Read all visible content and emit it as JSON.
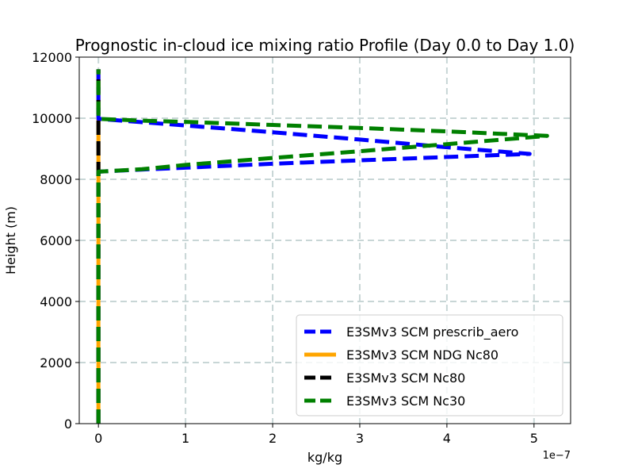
{
  "chart_data": {
    "type": "line",
    "title": "Prognostic in-cloud ice mixing ratio Profile (Day 0.0 to Day 1.0)",
    "xlabel": "kg/kg",
    "ylabel": "Height (m)",
    "x_offset_label": "1e−7",
    "xlim": [
      -0.22,
      5.42
    ],
    "ylim": [
      0,
      12000
    ],
    "xticks": [
      0,
      1,
      2,
      3,
      4,
      5
    ],
    "xtick_labels": [
      "0",
      "1",
      "2",
      "3",
      "4",
      "5"
    ],
    "yticks": [
      0,
      2000,
      4000,
      6000,
      8000,
      10000,
      12000
    ],
    "ytick_labels": [
      "0",
      "2000",
      "4000",
      "6000",
      "8000",
      "10000",
      "12000"
    ],
    "grid": true,
    "legend_position": "lower-right",
    "series": [
      {
        "name": "E3SMv3 SCM prescrib_aero",
        "color": "#0000ff",
        "style": "dashed",
        "x": [
          0,
          0,
          0.5,
          1.0,
          2.0,
          3.0,
          4.0,
          4.95,
          4.0,
          3.0,
          2.0,
          1.0,
          0.5,
          0,
          0
        ],
        "y": [
          0,
          8250,
          8320,
          8380,
          8510,
          8620,
          8730,
          8830,
          9050,
          9300,
          9540,
          9760,
          9870,
          9980,
          11600
        ]
      },
      {
        "name": "E3SMv3 SCM NDG Nc80",
        "color": "#ffa500",
        "style": "solid",
        "x": [
          0,
          0
        ],
        "y": [
          0,
          11600
        ]
      },
      {
        "name": "E3SMv3 SCM Nc80",
        "color": "#000000",
        "style": "dashed",
        "x": [
          0,
          0
        ],
        "y": [
          0,
          11600
        ]
      },
      {
        "name": "E3SMv3 SCM Nc30",
        "color": "#008000",
        "style": "dashed",
        "x": [
          0,
          0,
          0.5,
          1.0,
          2.0,
          3.0,
          4.0,
          5.15,
          4.0,
          3.0,
          2.0,
          1.0,
          0.5,
          0,
          0
        ],
        "y": [
          0,
          8250,
          8330,
          8470,
          8700,
          8920,
          9150,
          9420,
          9570,
          9680,
          9780,
          9880,
          9920,
          9980,
          11600
        ]
      }
    ]
  }
}
